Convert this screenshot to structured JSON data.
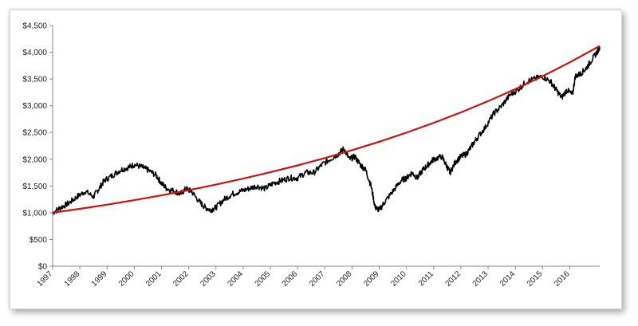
{
  "chart_data": {
    "type": "line",
    "title": "",
    "xlabel": "",
    "ylabel": "",
    "ylim": [
      0,
      4500
    ],
    "xlim": [
      1997,
      2017.1
    ],
    "y_tick_labels": [
      "$0",
      "$500",
      "$1,000",
      "$1,500",
      "$2,000",
      "$2,500",
      "$3,000",
      "$3,500",
      "$4,000",
      "$4,500"
    ],
    "y_tick_values": [
      0,
      500,
      1000,
      1500,
      2000,
      2500,
      3000,
      3500,
      4000,
      4500
    ],
    "x_tick_labels": [
      "1997",
      "1998",
      "1999",
      "2000",
      "2001",
      "2002",
      "2003",
      "2004",
      "2005",
      "2006",
      "2007",
      "2008",
      "2009",
      "2010",
      "2011",
      "2012",
      "2013",
      "2014",
      "2015",
      "2016"
    ],
    "x_tick_values": [
      1997,
      1998,
      1999,
      2000,
      2001,
      2002,
      2003,
      2004,
      2005,
      2006,
      2007,
      2008,
      2009,
      2010,
      2011,
      2012,
      2013,
      2014,
      2015,
      2016
    ],
    "grid": false,
    "legend": "none",
    "series": [
      {
        "color": "#000000",
        "x": [
          1997.0,
          1997.3,
          1997.6,
          1997.9,
          1998.2,
          1998.5,
          1998.7,
          1998.9,
          1999.2,
          1999.5,
          1999.8,
          2000.0,
          2000.3,
          2000.5,
          2000.8,
          2001.0,
          2001.2,
          2001.5,
          2001.7,
          2001.9,
          2002.1,
          2002.4,
          2002.6,
          2002.8,
          2003.0,
          2003.3,
          2003.6,
          2003.9,
          2004.2,
          2004.5,
          2004.8,
          2005.1,
          2005.4,
          2005.7,
          2006.0,
          2006.3,
          2006.6,
          2006.9,
          2007.2,
          2007.5,
          2007.7,
          2007.9,
          2008.1,
          2008.3,
          2008.5,
          2008.7,
          2008.85,
          2009.0,
          2009.2,
          2009.5,
          2009.8,
          2010.0,
          2010.2,
          2010.4,
          2010.6,
          2010.8,
          2011.0,
          2011.3,
          2011.5,
          2011.6,
          2011.8,
          2012.0,
          2012.2,
          2012.4,
          2012.6,
          2012.9,
          2013.2,
          2013.5,
          2013.8,
          2014.1,
          2014.4,
          2014.7,
          2015.0,
          2015.3,
          2015.5,
          2015.7,
          2015.9,
          2016.1,
          2016.2,
          2016.4,
          2016.6,
          2016.8,
          2017.0,
          2017.1
        ],
        "y": [
          1000,
          1100,
          1180,
          1300,
          1400,
          1300,
          1450,
          1600,
          1700,
          1800,
          1850,
          1900,
          1850,
          1800,
          1700,
          1550,
          1450,
          1400,
          1350,
          1450,
          1400,
          1200,
          1100,
          1050,
          1100,
          1250,
          1350,
          1400,
          1450,
          1500,
          1450,
          1550,
          1600,
          1650,
          1650,
          1750,
          1750,
          1900,
          2000,
          2100,
          2200,
          2000,
          2050,
          1900,
          1800,
          1500,
          1100,
          1050,
          1200,
          1400,
          1600,
          1650,
          1750,
          1650,
          1800,
          1900,
          2000,
          2050,
          1850,
          1750,
          1950,
          2050,
          2100,
          2250,
          2400,
          2600,
          2850,
          3000,
          3200,
          3300,
          3450,
          3500,
          3550,
          3450,
          3300,
          3150,
          3300,
          3200,
          3550,
          3600,
          3700,
          3850,
          4000,
          4100
        ]
      },
      {
        "color": "#cc1111",
        "x": [
          1997,
          1998,
          1999,
          2000,
          2001,
          2002,
          2003,
          2004,
          2005,
          2006,
          2007,
          2008,
          2009,
          2010,
          2011,
          2012,
          2013,
          2014,
          2015,
          2016,
          2017,
          2017.1
        ],
        "y": [
          1000,
          1073,
          1151,
          1235,
          1325,
          1422,
          1526,
          1637,
          1757,
          1885,
          2022,
          2170,
          2328,
          2498,
          2680,
          2876,
          3086,
          3311,
          3553,
          3812,
          4090,
          4120
        ]
      }
    ]
  }
}
